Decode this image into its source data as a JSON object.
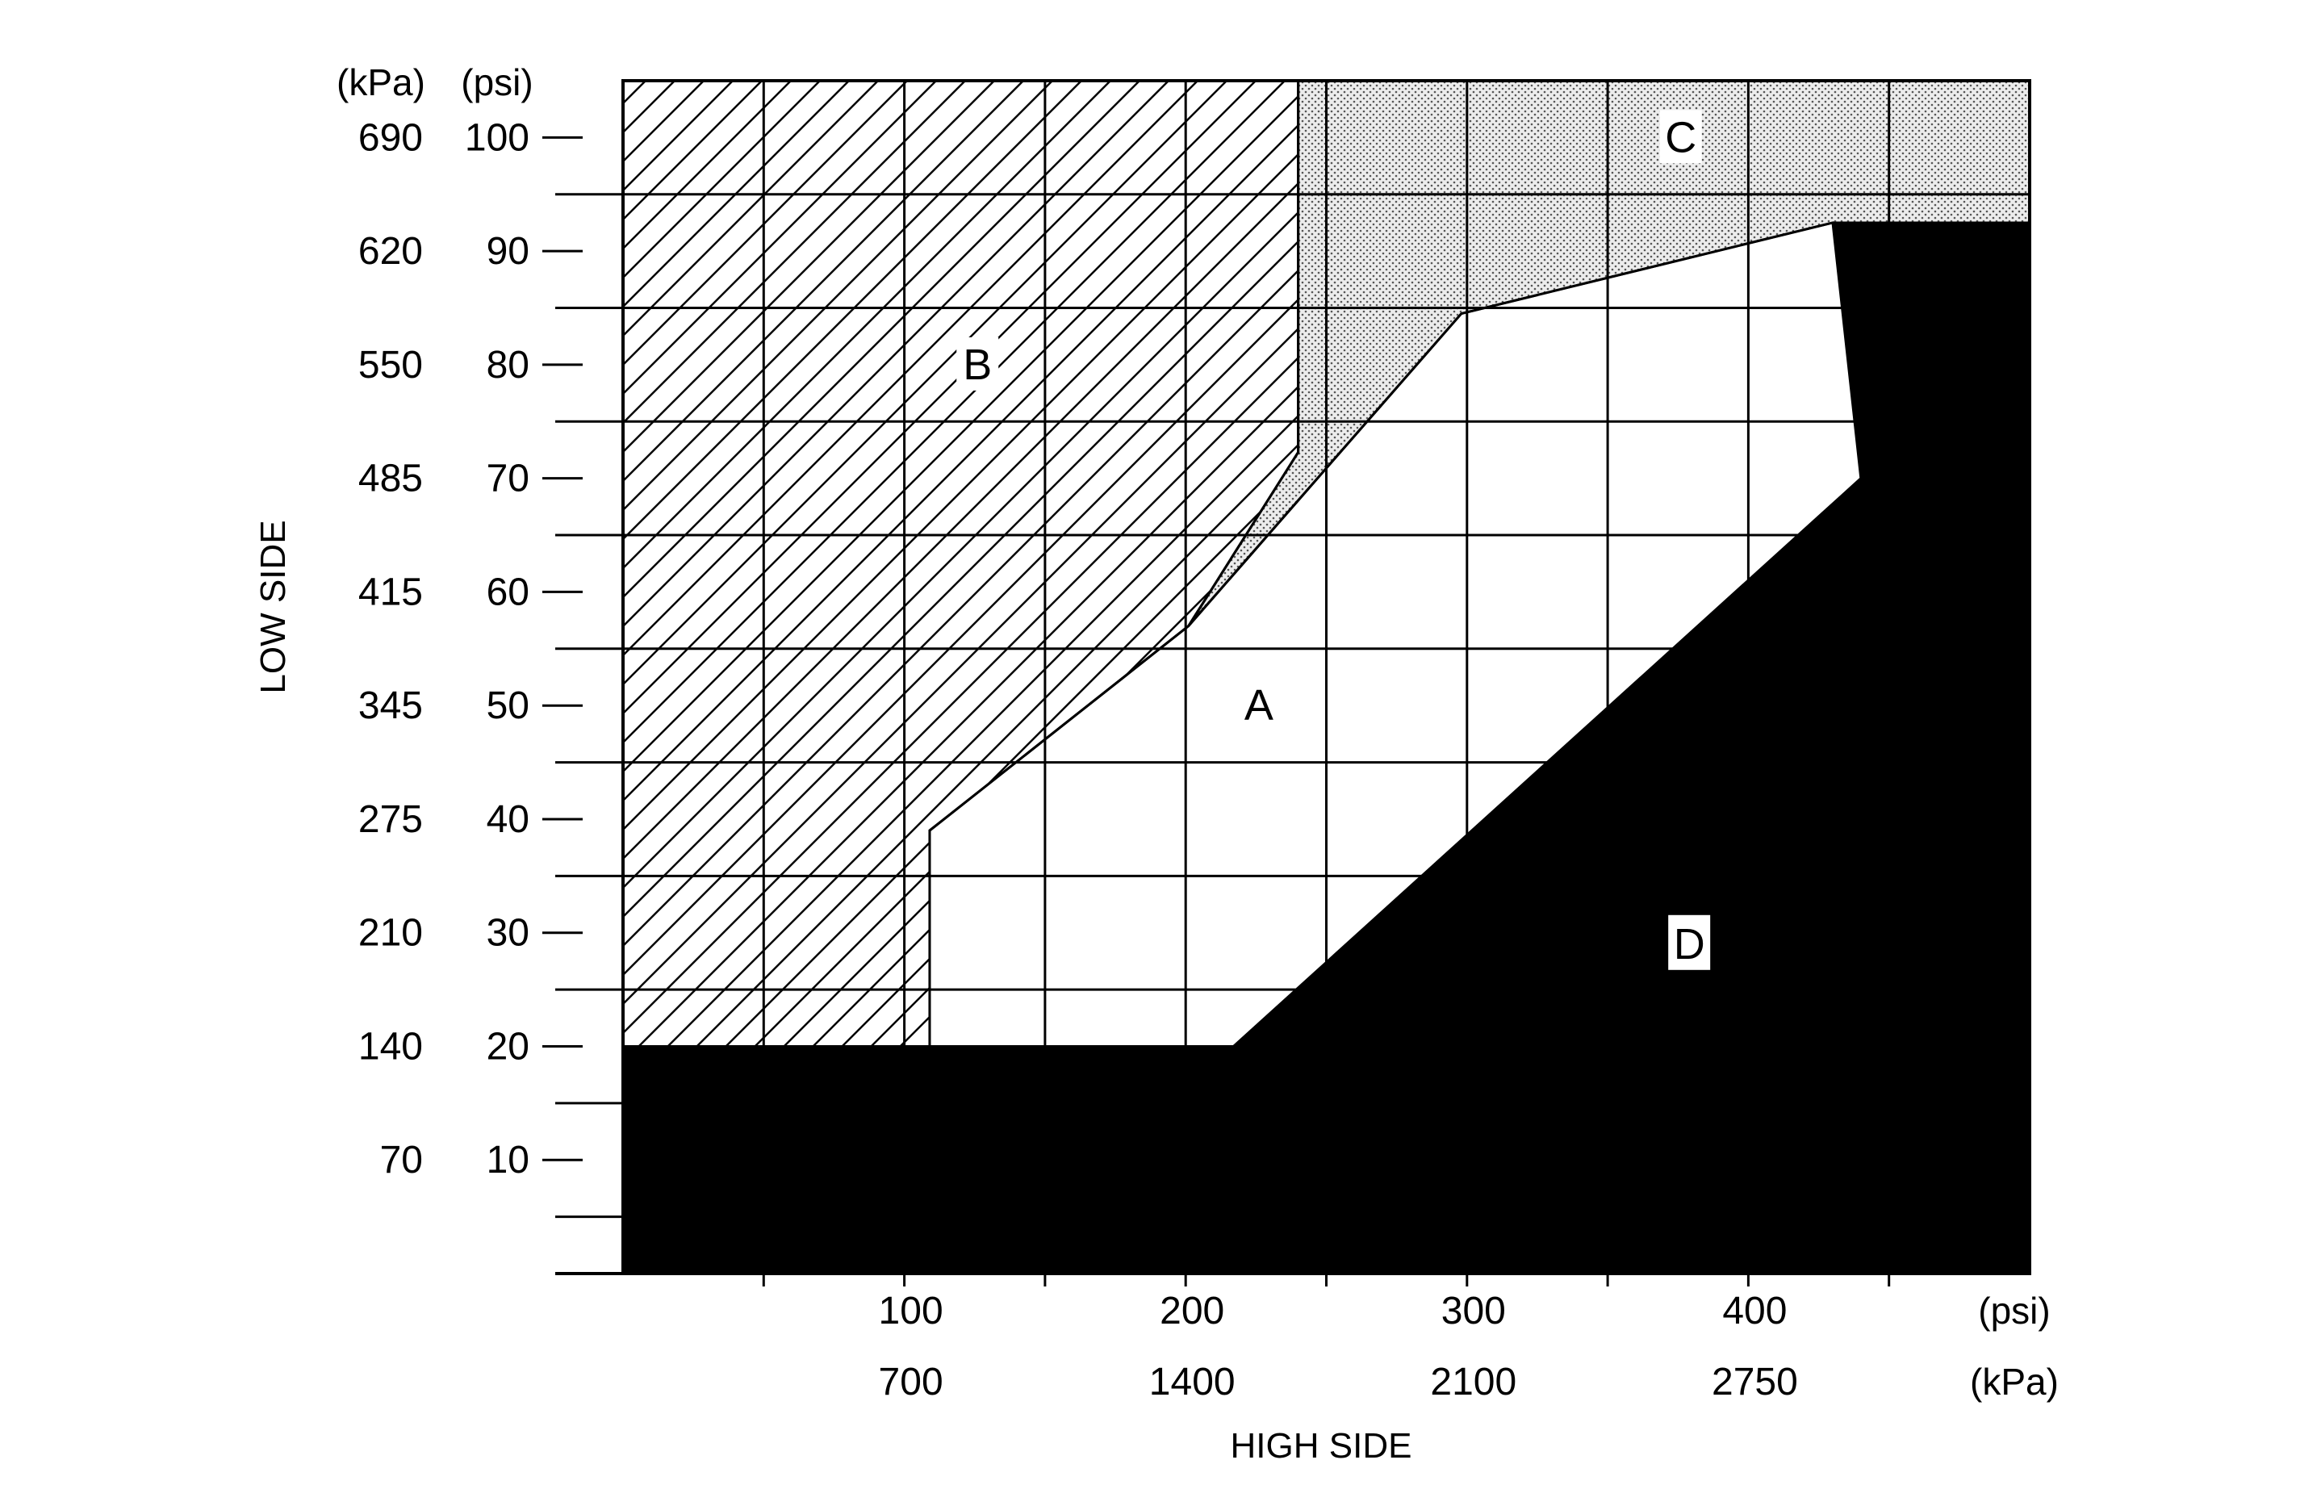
{
  "chart_data": {
    "type": "area",
    "title": "",
    "xlabel": "HIGH SIDE",
    "ylabel": "LOW SIDE",
    "x_unit_labels": {
      "primary": "(psi)",
      "secondary": "(kPa)"
    },
    "y_unit_labels": {
      "secondary": "(kPa)",
      "primary": "(psi)"
    },
    "xlim": [
      0,
      500
    ],
    "ylim": [
      0,
      105
    ],
    "grid": true,
    "x_ticks": [
      {
        "psi": 100,
        "psi_label": "100",
        "kpa_label": "700"
      },
      {
        "psi": 200,
        "psi_label": "200",
        "kpa_label": "1400"
      },
      {
        "psi": 300,
        "psi_label": "300",
        "kpa_label": "2100"
      },
      {
        "psi": 400,
        "psi_label": "400",
        "kpa_label": "2750"
      }
    ],
    "y_ticks": [
      {
        "psi": 10,
        "psi_label": "10",
        "kpa_label": "70"
      },
      {
        "psi": 20,
        "psi_label": "20",
        "kpa_label": "140"
      },
      {
        "psi": 30,
        "psi_label": "30",
        "kpa_label": "210"
      },
      {
        "psi": 40,
        "psi_label": "40",
        "kpa_label": "275"
      },
      {
        "psi": 50,
        "psi_label": "50",
        "kpa_label": "345"
      },
      {
        "psi": 60,
        "psi_label": "60",
        "kpa_label": "415"
      },
      {
        "psi": 70,
        "psi_label": "70",
        "kpa_label": "485"
      },
      {
        "psi": 80,
        "psi_label": "80",
        "kpa_label": "550"
      },
      {
        "psi": 90,
        "psi_label": "90",
        "kpa_label": "620"
      },
      {
        "psi": 100,
        "psi_label": "100",
        "kpa_label": "690"
      }
    ],
    "regions": [
      {
        "label": "B",
        "pattern": "hatch",
        "label_at": [
          126,
          80
        ],
        "polygon": [
          [
            0,
            105
          ],
          [
            240,
            105
          ],
          [
            240,
            72.3
          ],
          [
            201,
            57
          ],
          [
            109,
            39
          ],
          [
            109,
            20
          ],
          [
            0,
            20
          ]
        ]
      },
      {
        "label": "C",
        "pattern": "dots",
        "label_at": [
          376,
          100
        ],
        "polygon": [
          [
            240,
            105
          ],
          [
            500,
            105
          ],
          [
            500,
            92.5
          ],
          [
            430,
            92.5
          ],
          [
            298,
            84.5
          ],
          [
            201,
            57
          ],
          [
            240,
            72.3
          ]
        ]
      },
      {
        "label": "A",
        "pattern": "white",
        "label_at": [
          226,
          50
        ],
        "polygon": [
          [
            109,
            20
          ],
          [
            109,
            39
          ],
          [
            201,
            57
          ],
          [
            298,
            84.5
          ],
          [
            430,
            92.5
          ],
          [
            440,
            70
          ],
          [
            217,
            20
          ]
        ]
      },
      {
        "label": "D",
        "pattern": "solid",
        "label_at": [
          379,
          29
        ],
        "polygon": [
          [
            0,
            0
          ],
          [
            500,
            0
          ],
          [
            500,
            92.5
          ],
          [
            430,
            92.5
          ],
          [
            440,
            70
          ],
          [
            217,
            20
          ],
          [
            0,
            20
          ]
        ]
      }
    ]
  }
}
